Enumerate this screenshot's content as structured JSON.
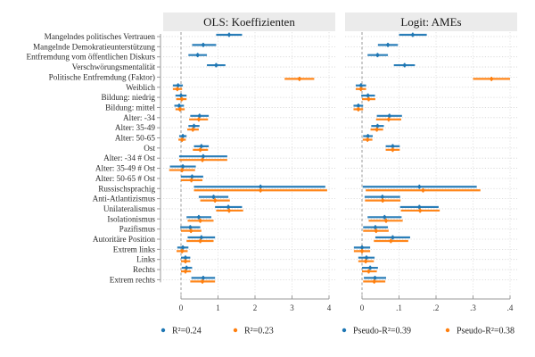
{
  "chart_data": {
    "type": "coefficient-plot",
    "row_labels": [
      "Mangelndes politisches Vertrauen",
      "Mangelnde Demokratieunterstützung",
      "Entfremdung vom öffentlichen Diskurs",
      "Verschwörungsmentalität",
      "Politische Entfremdung (Faktor)",
      "Weiblich",
      "Bildung: niedrig",
      "Bildung: mittel",
      "Alter: -34",
      "Alter: 35-49",
      "Alter: 50-65",
      "Ost",
      "Alter: -34 # Ost",
      "Alter: 35-49 # Ost",
      "Alter: 50-65 # Ost",
      "Russischsprachig",
      "Anti-Atlantizismus",
      "Unilateralismus",
      "Isolationismus",
      "Pazifismus",
      "Autoritäre Position",
      "Extrem links",
      "Links",
      "Rechts",
      "Extrem rechts"
    ],
    "colors": {
      "model1": "#1f77b4",
      "model2": "#ff7f0e"
    },
    "panels": [
      {
        "title": "OLS: Koeffizienten",
        "xlim": [
          0,
          4
        ],
        "ticks": [
          0,
          1,
          2,
          3,
          4
        ],
        "tick_labels": [
          "0",
          "1",
          "2",
          "3",
          "4"
        ],
        "reference_line": 0,
        "grid": true,
        "legend": [
          {
            "series": "model1",
            "label": "R²=0.24"
          },
          {
            "series": "model2",
            "label": "R²=0.23"
          }
        ],
        "series": [
          {
            "name": "model1",
            "points": [
              {
                "est": 1.3,
                "lo": 0.95,
                "hi": 1.65
              },
              {
                "est": 0.6,
                "lo": 0.3,
                "hi": 0.95
              },
              {
                "est": 0.45,
                "lo": 0.2,
                "hi": 0.7
              },
              {
                "est": 0.95,
                "lo": 0.7,
                "hi": 1.2
              },
              null,
              {
                "est": -0.08,
                "lo": -0.22,
                "hi": 0.05
              },
              {
                "est": 0.0,
                "lo": -0.15,
                "hi": 0.15
              },
              {
                "est": -0.05,
                "lo": -0.18,
                "hi": 0.08
              },
              {
                "est": 0.5,
                "lo": 0.25,
                "hi": 0.75
              },
              {
                "est": 0.35,
                "lo": 0.2,
                "hi": 0.5
              },
              {
                "est": 0.05,
                "lo": -0.05,
                "hi": 0.15
              },
              {
                "est": 0.55,
                "lo": 0.35,
                "hi": 0.75
              },
              {
                "est": 0.6,
                "lo": -0.05,
                "hi": 1.25
              },
              {
                "est": 0.05,
                "lo": -0.3,
                "hi": 0.4
              },
              {
                "est": 0.3,
                "lo": 0.0,
                "hi": 0.6
              },
              {
                "est": 2.15,
                "lo": 0.35,
                "hi": 3.9
              },
              {
                "est": 0.88,
                "lo": 0.48,
                "hi": 1.28
              },
              {
                "est": 1.28,
                "lo": 0.92,
                "hi": 1.65
              },
              {
                "est": 0.48,
                "lo": 0.15,
                "hi": 0.82
              },
              {
                "est": 0.25,
                "lo": -0.02,
                "hi": 0.52
              },
              {
                "est": 0.55,
                "lo": 0.18,
                "hi": 0.92
              },
              {
                "est": 0.05,
                "lo": -0.1,
                "hi": 0.2
              },
              {
                "est": 0.12,
                "lo": 0.0,
                "hi": 0.25
              },
              {
                "est": 0.15,
                "lo": 0.02,
                "hi": 0.3
              },
              {
                "est": 0.6,
                "lo": 0.28,
                "hi": 0.92
              }
            ]
          },
          {
            "name": "model2",
            "points": [
              null,
              null,
              null,
              null,
              {
                "est": 3.2,
                "lo": 2.8,
                "hi": 3.6
              },
              {
                "est": -0.1,
                "lo": -0.22,
                "hi": 0.03
              },
              {
                "est": 0.02,
                "lo": -0.13,
                "hi": 0.15
              },
              {
                "est": -0.03,
                "lo": -0.15,
                "hi": 0.1
              },
              {
                "est": 0.48,
                "lo": 0.22,
                "hi": 0.73
              },
              {
                "est": 0.32,
                "lo": 0.17,
                "hi": 0.48
              },
              {
                "est": 0.03,
                "lo": -0.07,
                "hi": 0.13
              },
              {
                "est": 0.52,
                "lo": 0.32,
                "hi": 0.73
              },
              {
                "est": 0.58,
                "lo": -0.05,
                "hi": 1.25
              },
              {
                "est": 0.03,
                "lo": -0.32,
                "hi": 0.38
              },
              {
                "est": 0.28,
                "lo": 0.0,
                "hi": 0.58
              },
              {
                "est": 2.15,
                "lo": 0.35,
                "hi": 3.95
              },
              {
                "est": 0.92,
                "lo": 0.52,
                "hi": 1.32
              },
              {
                "est": 1.3,
                "lo": 0.95,
                "hi": 1.68
              },
              {
                "est": 0.52,
                "lo": 0.18,
                "hi": 0.88
              },
              {
                "est": 0.27,
                "lo": 0.0,
                "hi": 0.55
              },
              {
                "est": 0.52,
                "lo": 0.15,
                "hi": 0.88
              },
              {
                "est": 0.03,
                "lo": -0.12,
                "hi": 0.18
              },
              {
                "est": 0.12,
                "lo": 0.0,
                "hi": 0.25
              },
              {
                "est": 0.12,
                "lo": 0.0,
                "hi": 0.27
              },
              {
                "est": 0.58,
                "lo": 0.25,
                "hi": 0.92
              }
            ]
          }
        ]
      },
      {
        "title": "Logit: AMEs",
        "xlim": [
          0,
          0.4
        ],
        "ticks": [
          0,
          0.1,
          0.2,
          0.3,
          0.4
        ],
        "tick_labels": [
          "0",
          ".1",
          ".2",
          ".3",
          ".4"
        ],
        "reference_line": 0,
        "grid": true,
        "legend": [
          {
            "series": "model1",
            "label": "Pseudo-R²=0.39"
          },
          {
            "series": "model2",
            "label": "Pseudo-R²=0.38"
          }
        ],
        "series": [
          {
            "name": "model1",
            "points": [
              {
                "est": 0.137,
                "lo": 0.1,
                "hi": 0.175
              },
              {
                "est": 0.07,
                "lo": 0.043,
                "hi": 0.097
              },
              {
                "est": 0.042,
                "lo": 0.015,
                "hi": 0.07
              },
              {
                "est": 0.115,
                "lo": 0.086,
                "hi": 0.143
              },
              null,
              {
                "est": -0.003,
                "lo": -0.017,
                "hi": 0.011
              },
              {
                "est": 0.016,
                "lo": -0.002,
                "hi": 0.035
              },
              {
                "est": -0.01,
                "lo": -0.023,
                "hi": 0.003
              },
              {
                "est": 0.074,
                "lo": 0.04,
                "hi": 0.108
              },
              {
                "est": 0.042,
                "lo": 0.025,
                "hi": 0.059
              },
              {
                "est": 0.016,
                "lo": 0.003,
                "hi": 0.029
              },
              {
                "est": 0.083,
                "lo": 0.064,
                "hi": 0.102
              },
              null,
              null,
              null,
              {
                "est": 0.155,
                "lo": 0.002,
                "hi": 0.31
              },
              {
                "est": 0.055,
                "lo": 0.007,
                "hi": 0.103
              },
              {
                "est": 0.155,
                "lo": 0.103,
                "hi": 0.207
              },
              {
                "est": 0.061,
                "lo": 0.015,
                "hi": 0.107
              },
              {
                "est": 0.036,
                "lo": 0.003,
                "hi": 0.07
              },
              {
                "est": 0.083,
                "lo": 0.036,
                "hi": 0.13
              },
              {
                "est": 0.0,
                "lo": -0.022,
                "hi": 0.022
              },
              {
                "est": 0.012,
                "lo": -0.01,
                "hi": 0.034
              },
              {
                "est": 0.022,
                "lo": 0.0,
                "hi": 0.043
              },
              {
                "est": 0.035,
                "lo": 0.005,
                "hi": 0.065
              }
            ]
          },
          {
            "name": "model2",
            "points": [
              null,
              null,
              null,
              null,
              {
                "est": 0.35,
                "lo": 0.3,
                "hi": 0.4
              },
              {
                "est": -0.003,
                "lo": -0.017,
                "hi": 0.011
              },
              {
                "est": 0.018,
                "lo": 0.0,
                "hi": 0.036
              },
              {
                "est": -0.01,
                "lo": -0.023,
                "hi": 0.003
              },
              {
                "est": 0.072,
                "lo": 0.038,
                "hi": 0.106
              },
              {
                "est": 0.04,
                "lo": 0.023,
                "hi": 0.057
              },
              {
                "est": 0.015,
                "lo": 0.002,
                "hi": 0.028
              },
              {
                "est": 0.083,
                "lo": 0.064,
                "hi": 0.102
              },
              null,
              null,
              null,
              {
                "est": 0.165,
                "lo": 0.01,
                "hi": 0.32
              },
              {
                "est": 0.056,
                "lo": 0.008,
                "hi": 0.104
              },
              {
                "est": 0.157,
                "lo": 0.105,
                "hi": 0.21
              },
              {
                "est": 0.065,
                "lo": 0.018,
                "hi": 0.11
              },
              {
                "est": 0.038,
                "lo": 0.003,
                "hi": 0.072
              },
              {
                "est": 0.078,
                "lo": 0.032,
                "hi": 0.125
              },
              {
                "est": 0.0,
                "lo": -0.022,
                "hi": 0.022
              },
              {
                "est": 0.01,
                "lo": -0.01,
                "hi": 0.032
              },
              {
                "est": 0.018,
                "lo": 0.0,
                "hi": 0.04
              },
              {
                "est": 0.033,
                "lo": 0.003,
                "hi": 0.063
              }
            ]
          }
        ]
      }
    ]
  }
}
